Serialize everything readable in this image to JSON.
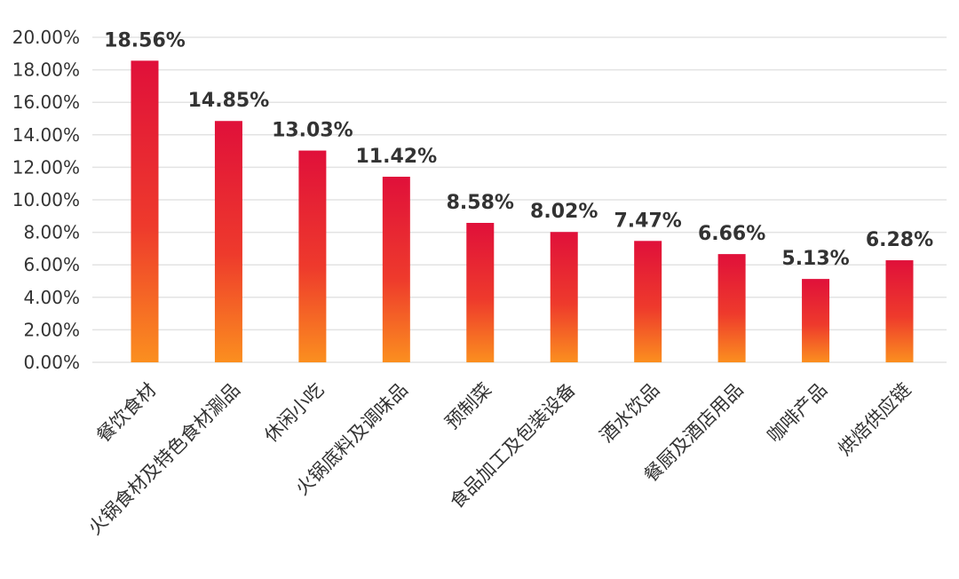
{
  "chart_data": {
    "type": "bar",
    "categories": [
      "餐饮食材",
      "火锅食材及特色食材涮品",
      "休闲小吃",
      "火锅底料及调味品",
      "预制菜",
      "食品加工及包装设备",
      "酒水饮品",
      "餐厨及酒店用品",
      "咖啡产品",
      "烘焙供应链"
    ],
    "values": [
      18.56,
      14.85,
      13.03,
      11.42,
      8.58,
      8.02,
      7.47,
      6.66,
      5.13,
      6.28
    ],
    "value_labels": [
      "18.56%",
      "14.85%",
      "13.03%",
      "11.42%",
      "8.58%",
      "8.02%",
      "7.47%",
      "6.66%",
      "5.13%",
      "6.28%"
    ],
    "y_ticks": [
      "0.00%",
      "2.00%",
      "4.00%",
      "6.00%",
      "8.00%",
      "10.00%",
      "12.00%",
      "14.00%",
      "16.00%",
      "18.00%",
      "20.00%"
    ],
    "ylim": [
      0,
      20
    ],
    "grid": true,
    "legend": "none",
    "title": "",
    "xlabel": "",
    "ylabel": "",
    "colors": {
      "bar_top": "#e0103a",
      "bar_bottom": "#fb8f1f",
      "grid": "#e3e3e3",
      "text": "#333333"
    }
  }
}
